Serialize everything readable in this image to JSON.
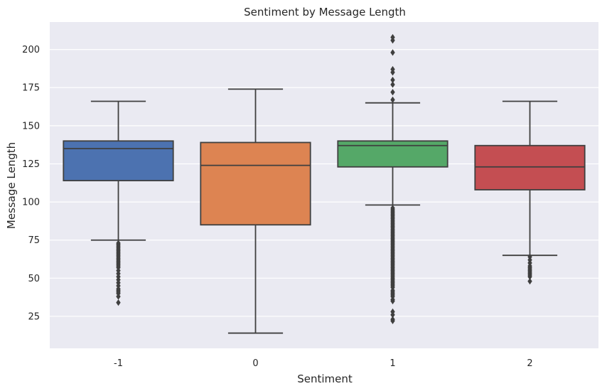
{
  "chart_data": {
    "type": "box",
    "title": "Sentiment by Message Length",
    "xlabel": "Sentiment",
    "ylabel": "Message Length",
    "ylim": [
      4,
      218
    ],
    "yticks": [
      25,
      50,
      75,
      100,
      125,
      150,
      175,
      200
    ],
    "grid": true,
    "categories": [
      "-1",
      "0",
      "1",
      "2"
    ],
    "colors": {
      "background": "#EAEAF2",
      "grid": "#FFFFFF",
      "line": "#3F3F3F",
      "outlier": "#3F3F3F"
    },
    "boxes": [
      {
        "category": "-1",
        "color": "#4C72B0",
        "whisker_low": 75,
        "q1": 114,
        "median": 135,
        "q3": 140,
        "whisker_high": 166,
        "outliers": [
          73,
          72,
          71,
          70,
          69,
          68,
          67,
          66,
          65,
          64,
          63,
          62,
          61,
          60,
          59,
          58,
          57,
          55,
          53,
          51,
          49,
          47,
          45,
          43,
          42,
          41,
          40,
          38,
          34
        ]
      },
      {
        "category": "0",
        "color": "#DD8452",
        "whisker_low": 14,
        "q1": 85,
        "median": 124,
        "q3": 139,
        "whisker_high": 174,
        "outliers": []
      },
      {
        "category": "1",
        "color": "#55A868",
        "whisker_low": 98,
        "q1": 123,
        "median": 137,
        "q3": 140,
        "whisker_high": 165,
        "outliers": [
          96,
          95,
          94,
          93,
          92,
          91,
          90,
          89,
          88,
          87,
          86,
          85,
          84,
          83,
          82,
          81,
          80,
          79,
          78,
          77,
          76,
          75,
          74,
          73,
          72,
          71,
          70,
          69,
          68,
          67,
          66,
          65,
          64,
          63,
          62,
          61,
          60,
          59,
          58,
          57,
          56,
          55,
          54,
          53,
          52,
          51,
          50,
          49,
          48,
          47,
          46,
          45,
          44,
          42,
          41,
          40,
          39,
          38,
          36,
          35,
          28,
          26,
          23,
          22,
          167,
          172,
          177,
          180,
          185,
          187,
          198,
          206,
          208
        ]
      },
      {
        "category": "2",
        "color": "#C44E52",
        "whisker_low": 65,
        "q1": 108,
        "median": 123,
        "q3": 137,
        "whisker_high": 166,
        "outliers": [
          64,
          62,
          60,
          58,
          57,
          56,
          55,
          54,
          53,
          52,
          51,
          48
        ]
      }
    ]
  }
}
